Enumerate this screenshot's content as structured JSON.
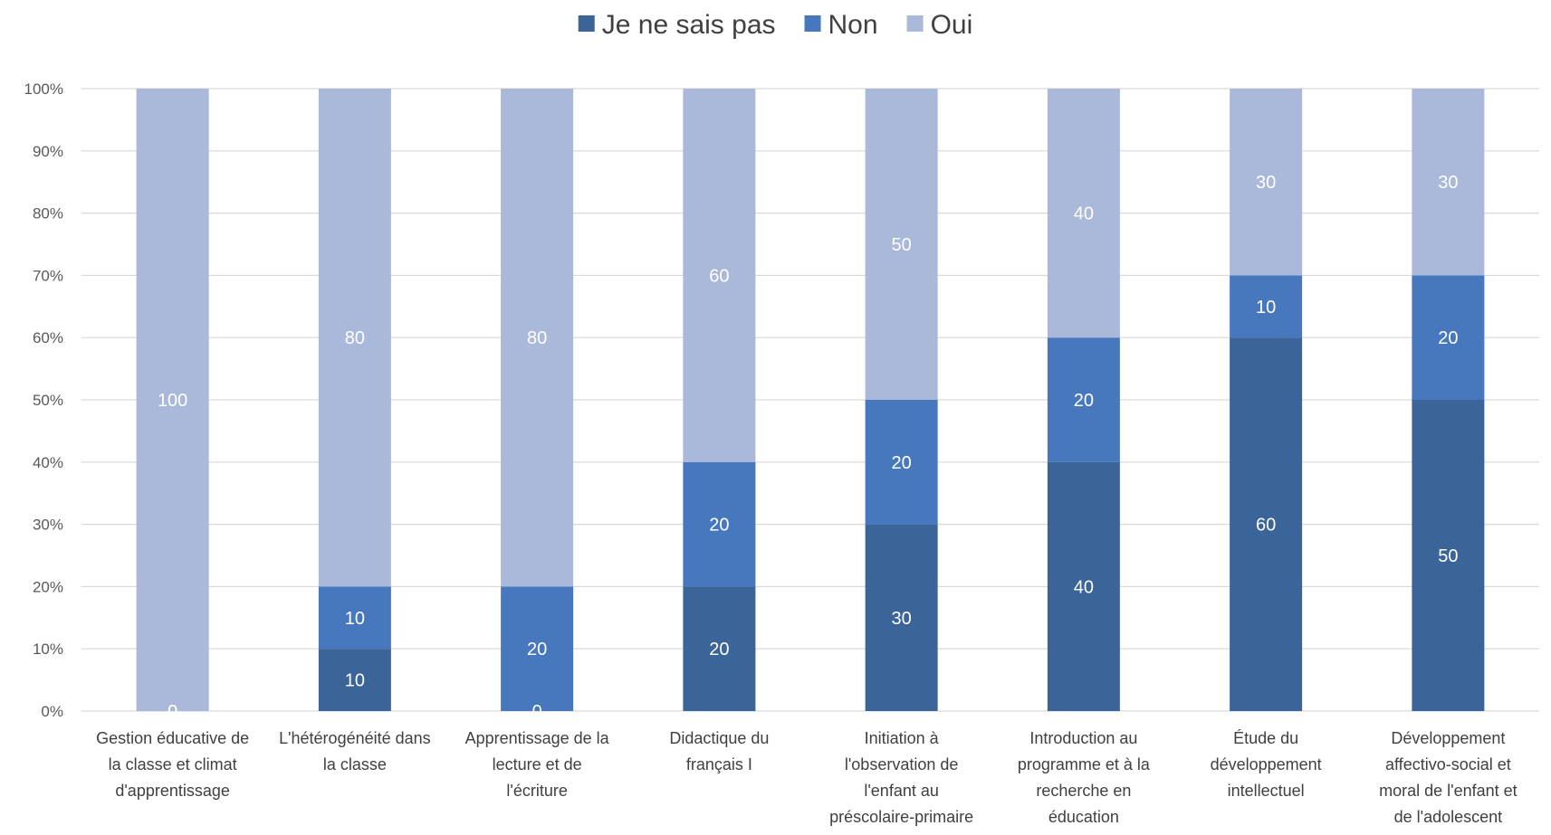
{
  "chart_data": {
    "type": "bar",
    "stacked": "percent",
    "categories": [
      "Gestion éducative de la classe et climat d'apprentissage",
      "L'hétérogénéité dans la classe",
      "Apprentissage de la lecture et de l'écriture",
      "Didactique du français I",
      "Initiation à l'observation de l'enfant au préscolaire-primaire",
      "Introduction au programme et à la recherche en éducation",
      "Étude du développement intellectuel",
      "Développement affectivo-social et moral de l'enfant et de l'adolescent"
    ],
    "category_lines": [
      [
        "Gestion éducative de",
        "la classe et climat",
        "d'apprentissage"
      ],
      [
        "L'hétérogénéité dans",
        "la classe"
      ],
      [
        "Apprentissage de la",
        "lecture et de",
        "l'écriture"
      ],
      [
        "Didactique du",
        "français I"
      ],
      [
        "Initiation à",
        "l'observation de",
        "l'enfant au",
        "préscolaire-primaire"
      ],
      [
        "Introduction au",
        "programme et à la",
        "recherche en",
        "éducation"
      ],
      [
        "Étude du",
        "développement",
        "intellectuel"
      ],
      [
        "Développement",
        "affectivo-social et",
        "moral de l'enfant et",
        "de l'adolescent"
      ]
    ],
    "series": [
      {
        "name": "Je ne sais pas",
        "color": "#3b6499",
        "values": [
          0,
          10,
          0,
          20,
          30,
          40,
          60,
          50
        ]
      },
      {
        "name": "Non",
        "color": "#4778bd",
        "values": [
          0,
          10,
          20,
          20,
          20,
          20,
          10,
          20
        ]
      },
      {
        "name": "Oui",
        "color": "#aab8da",
        "values": [
          100,
          80,
          80,
          60,
          50,
          40,
          30,
          30
        ]
      }
    ],
    "y_ticks": [
      "0%",
      "10%",
      "20%",
      "30%",
      "40%",
      "50%",
      "60%",
      "70%",
      "80%",
      "90%",
      "100%"
    ],
    "ylim": [
      0,
      100
    ],
    "grid": true,
    "legend": "top-center"
  }
}
